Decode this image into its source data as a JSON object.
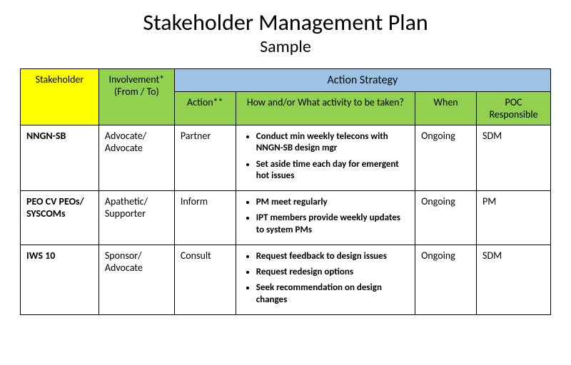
{
  "title": "Stakeholder Management Plan",
  "subtitle": "Sample",
  "colors": {
    "stakeholder_header_bg": "#ffff00",
    "green_header_bg": "#92d050",
    "action_strip_bg": "#9cc3e6",
    "border": "#000000",
    "background": "#ffffff",
    "text": "#000000"
  },
  "headers": {
    "stakeholder": "Stakeholder",
    "involvement": "Involvement* (From / To)",
    "action_strip": "Action Strategy",
    "action": "Action**",
    "how": "How and/or What activity to be taken?",
    "when": "When",
    "poc": "POC Responsible"
  },
  "rows": [
    {
      "stakeholder": "NNGN-SB",
      "involvement": "Advocate/ Advocate",
      "action": "Partner",
      "activities": [
        "Conduct min weekly telecons with NNGN-SB design mgr",
        "Set aside time each day for emergent hot issues"
      ],
      "when": "Ongoing",
      "poc": "SDM"
    },
    {
      "stakeholder": "PEO CV PEOs/ SYSCOMs",
      "involvement": "Apathetic/ Supporter",
      "action": "Inform",
      "activities": [
        "PM meet regularly",
        "IPT members provide weekly updates to system PMs"
      ],
      "when": "Ongoing",
      "poc": "PM"
    },
    {
      "stakeholder": "IWS 10",
      "involvement": "Sponsor/ Advocate",
      "action": "Consult",
      "activities": [
        "Request feedback to design issues",
        "Request redesign options",
        "Seek recommendation on design changes"
      ],
      "when": "Ongoing",
      "poc": "SDM"
    }
  ]
}
